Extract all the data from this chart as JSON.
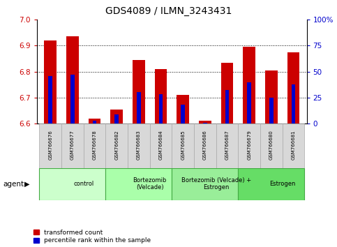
{
  "title": "GDS4089 / ILMN_3243431",
  "samples": [
    "GSM766676",
    "GSM766677",
    "GSM766678",
    "GSM766682",
    "GSM766683",
    "GSM766684",
    "GSM766685",
    "GSM766686",
    "GSM766687",
    "GSM766679",
    "GSM766680",
    "GSM766681"
  ],
  "transformed_count": [
    6.92,
    6.935,
    6.62,
    6.655,
    6.845,
    6.81,
    6.71,
    6.61,
    6.835,
    6.895,
    6.805,
    6.875
  ],
  "percentile_rank": [
    46,
    47,
    3,
    9,
    30,
    28,
    18,
    1,
    32,
    40,
    25,
    38
  ],
  "ylim_left": [
    6.6,
    7.0
  ],
  "ylim_right": [
    0,
    100
  ],
  "yticks_left": [
    6.6,
    6.7,
    6.8,
    6.9,
    7.0
  ],
  "yticks_right": [
    0,
    25,
    50,
    75,
    100
  ],
  "groups": [
    {
      "label": "control",
      "start": 0,
      "end": 3,
      "color": "#ccffcc"
    },
    {
      "label": "Bortezomib\n(Velcade)",
      "start": 3,
      "end": 6,
      "color": "#aaffaa"
    },
    {
      "label": "Bortezomib (Velcade) +\nEstrogen",
      "start": 6,
      "end": 9,
      "color": "#99ee99"
    },
    {
      "label": "Estrogen",
      "start": 9,
      "end": 12,
      "color": "#66dd66"
    }
  ],
  "bar_color": "#cc0000",
  "blue_color": "#0000cc",
  "bar_width": 0.55,
  "blue_bar_width": 0.18,
  "base_value": 6.6,
  "legend_red": "transformed count",
  "legend_blue": "percentile rank within the sample",
  "agent_label": "agent",
  "left_axis_color": "#cc0000",
  "right_axis_color": "#0000cc",
  "grid_lines": [
    6.7,
    6.8,
    6.9
  ],
  "label_bg": "#d8d8d8",
  "group_border_color": "#44aa44"
}
